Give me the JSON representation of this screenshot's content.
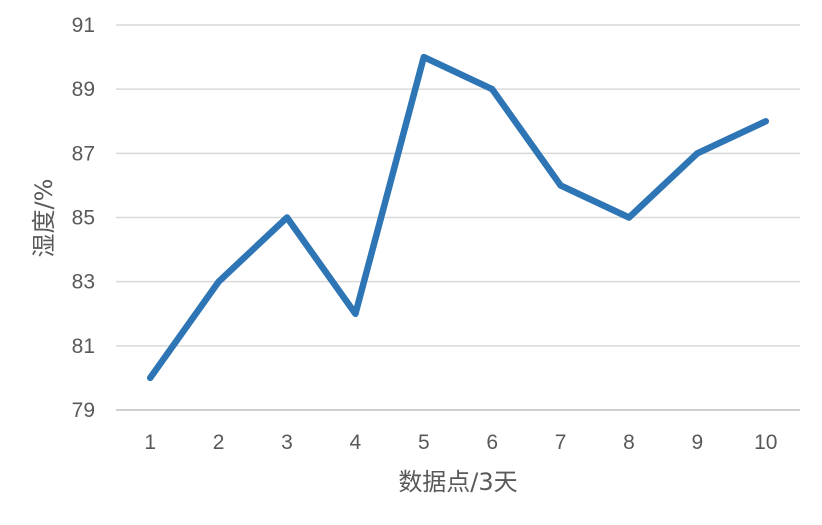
{
  "chart_data": {
    "type": "line",
    "xlabel": "数据点/3天",
    "ylabel": "湿度/%",
    "categories": [
      "1",
      "2",
      "3",
      "4",
      "5",
      "6",
      "7",
      "8",
      "9",
      "10"
    ],
    "series": [
      {
        "values": [
          80,
          83,
          85,
          82,
          90,
          89,
          86,
          85,
          87,
          88
        ]
      }
    ],
    "ylim": [
      79,
      91
    ],
    "yticks": [
      "79",
      "81",
      "83",
      "85",
      "87",
      "89",
      "91"
    ],
    "grid": true,
    "legend": "none",
    "colors": {
      "series": "#2e75b6",
      "grid": "#d9d9d9",
      "text": "#595959"
    }
  }
}
